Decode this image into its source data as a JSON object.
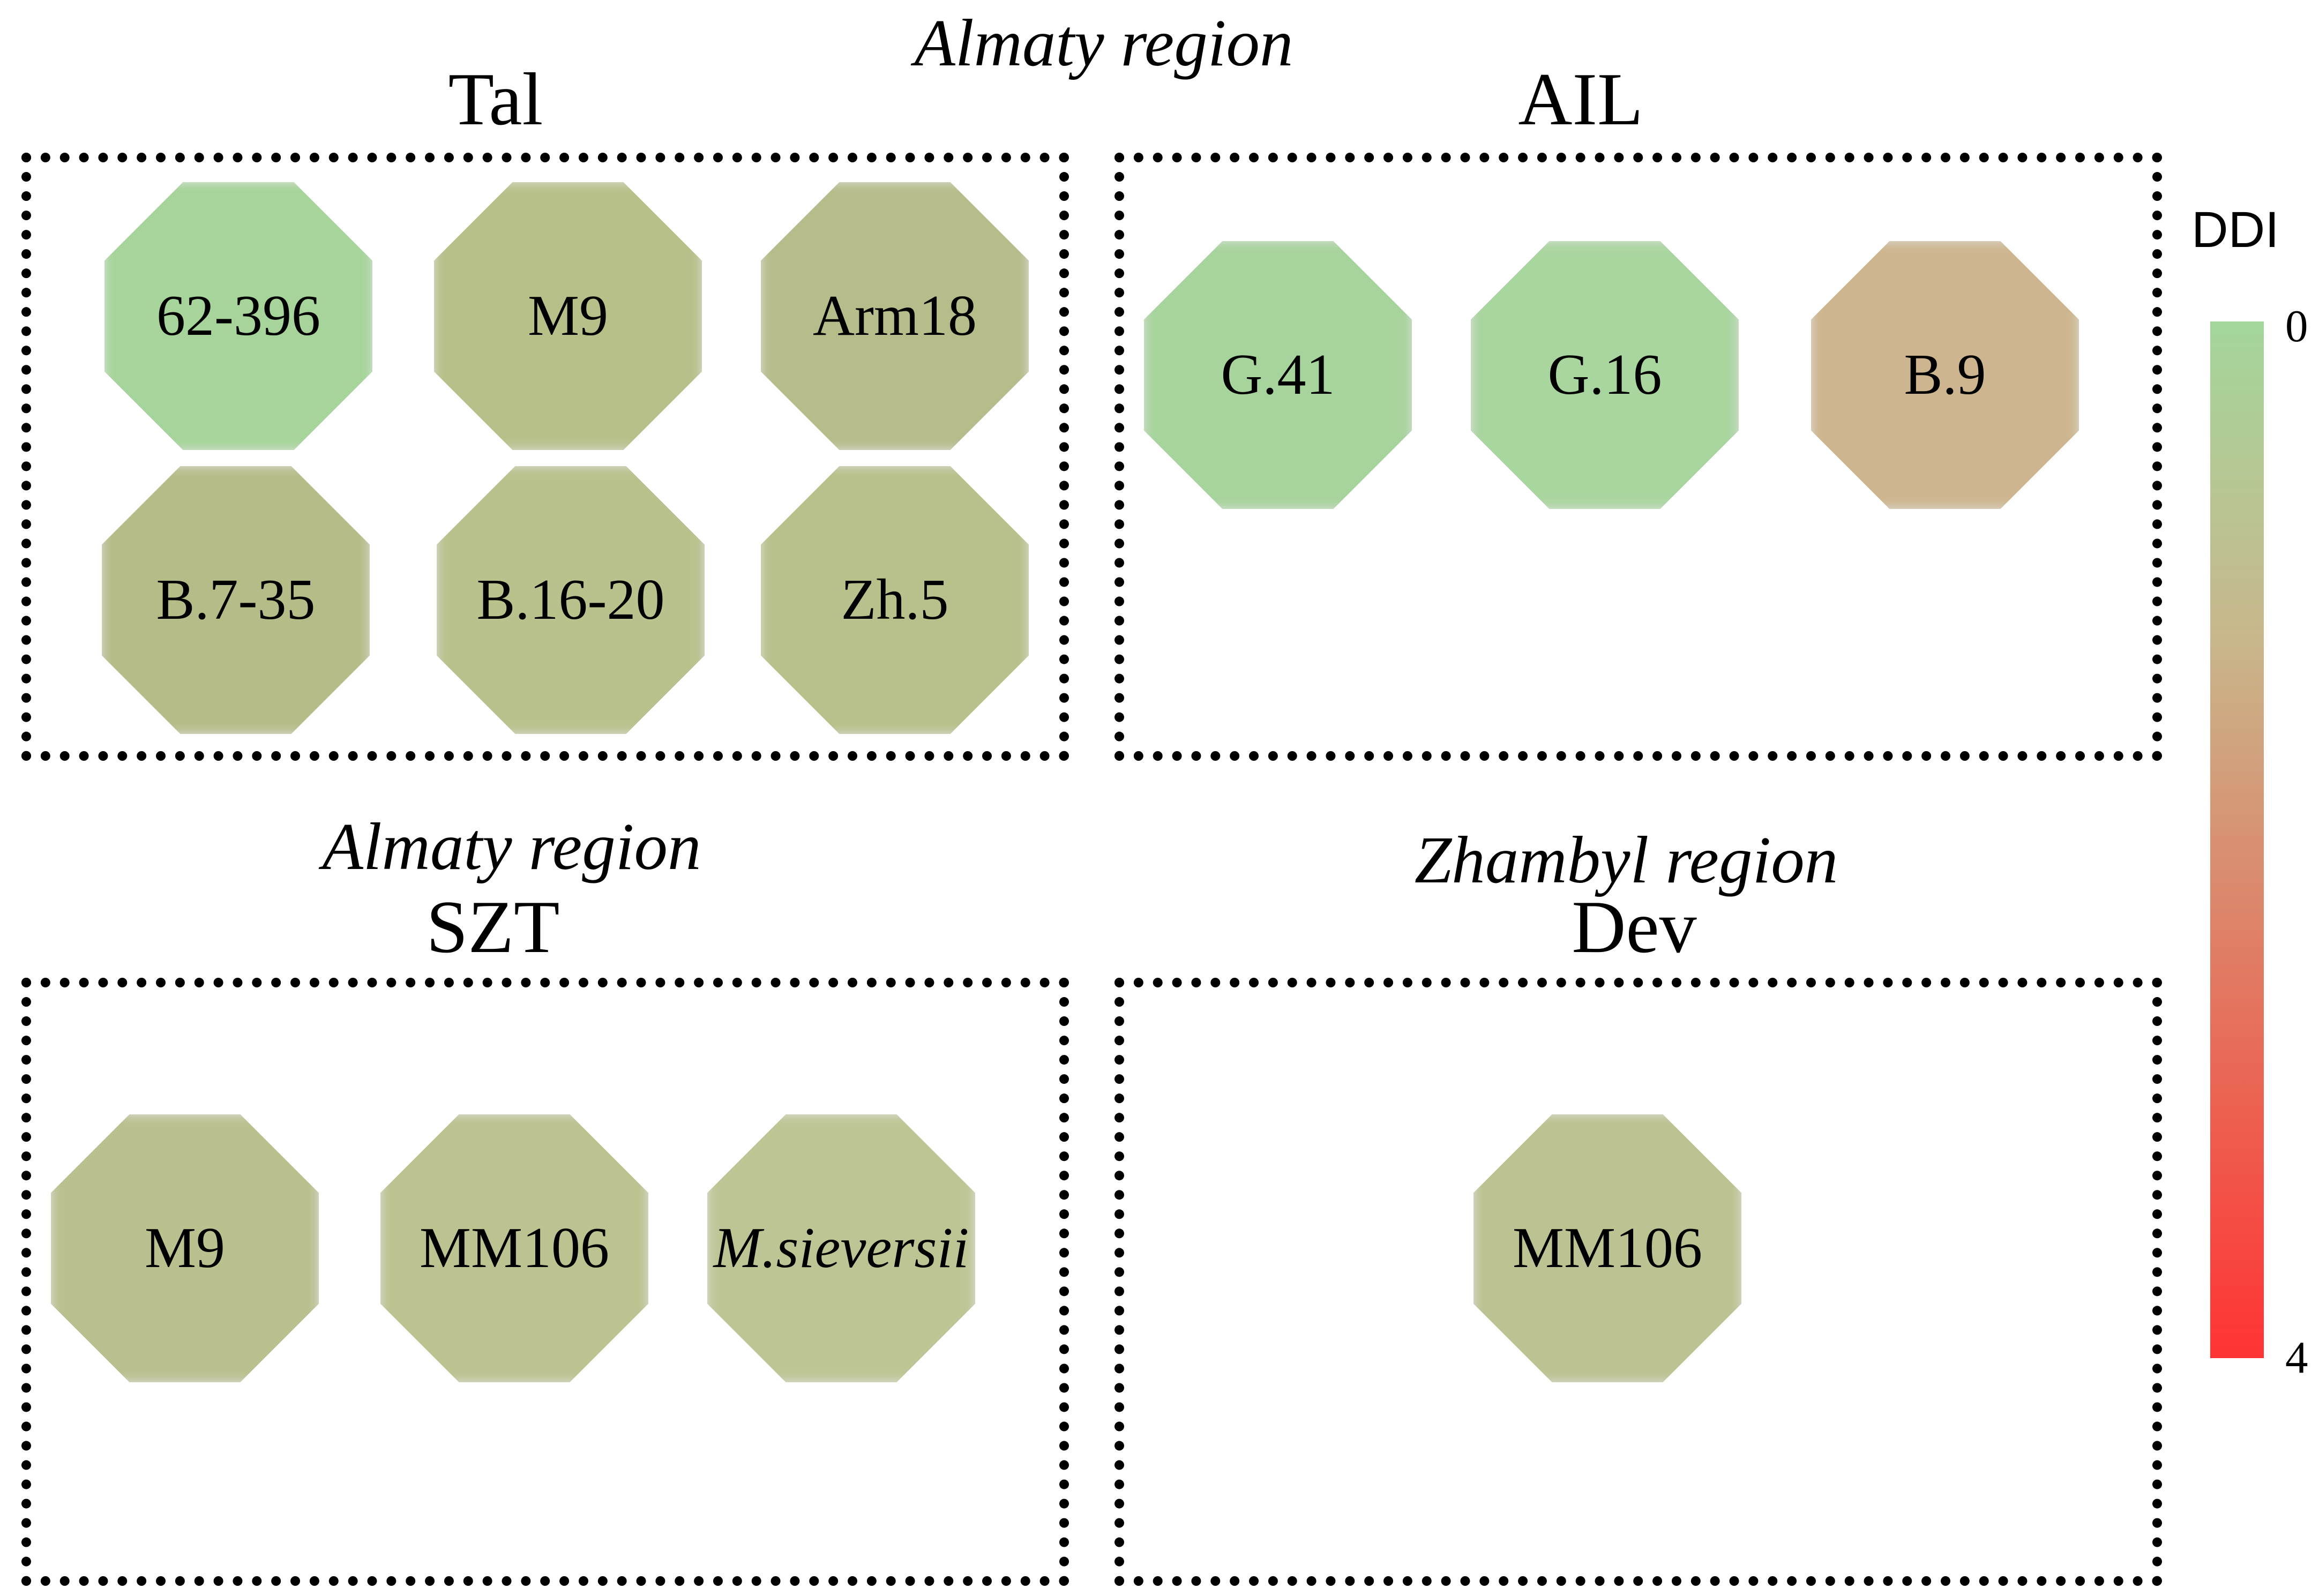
{
  "panels": [
    {
      "region": "Almaty region",
      "site": "Tal",
      "items": [
        {
          "label": "62-396",
          "color": "#a6d49a",
          "italic": false
        },
        {
          "label": "M9",
          "color": "#b8c08a",
          "italic": false
        },
        {
          "label": "Arm18",
          "color": "#b6bc8a",
          "italic": false
        },
        {
          "label": "B.7-35",
          "color": "#b6bc88",
          "italic": false
        },
        {
          "label": "B.16-20",
          "color": "#b9c18c",
          "italic": false
        },
        {
          "label": "Zh.5",
          "color": "#b8c08b",
          "italic": false
        }
      ]
    },
    {
      "region": "",
      "site": "AIL",
      "items": [
        {
          "label": "G.41",
          "color": "#a7d39c",
          "italic": false
        },
        {
          "label": "G.16",
          "color": "#a9d59f",
          "italic": false
        },
        {
          "label": "B.9",
          "color": "#cdb68f",
          "italic": false
        }
      ]
    },
    {
      "region": "Almaty region",
      "site": "SZT",
      "items": [
        {
          "label": "M9",
          "color": "#bbc08f",
          "italic": false
        },
        {
          "label": "MM106",
          "color": "#bcc290",
          "italic": false
        },
        {
          "label": "M.sieversii",
          "color": "#bec595",
          "italic": true
        }
      ]
    },
    {
      "region": "Zhambyl region",
      "site": "Dev",
      "items": [
        {
          "label": "MM106",
          "color": "#bcc291",
          "italic": false
        }
      ]
    }
  ],
  "legend": {
    "title": "DDI",
    "min": "0",
    "max": "4",
    "color_min": "#a3d69b",
    "color_mid": "#c8b88c",
    "color_max": "#ff3333"
  }
}
